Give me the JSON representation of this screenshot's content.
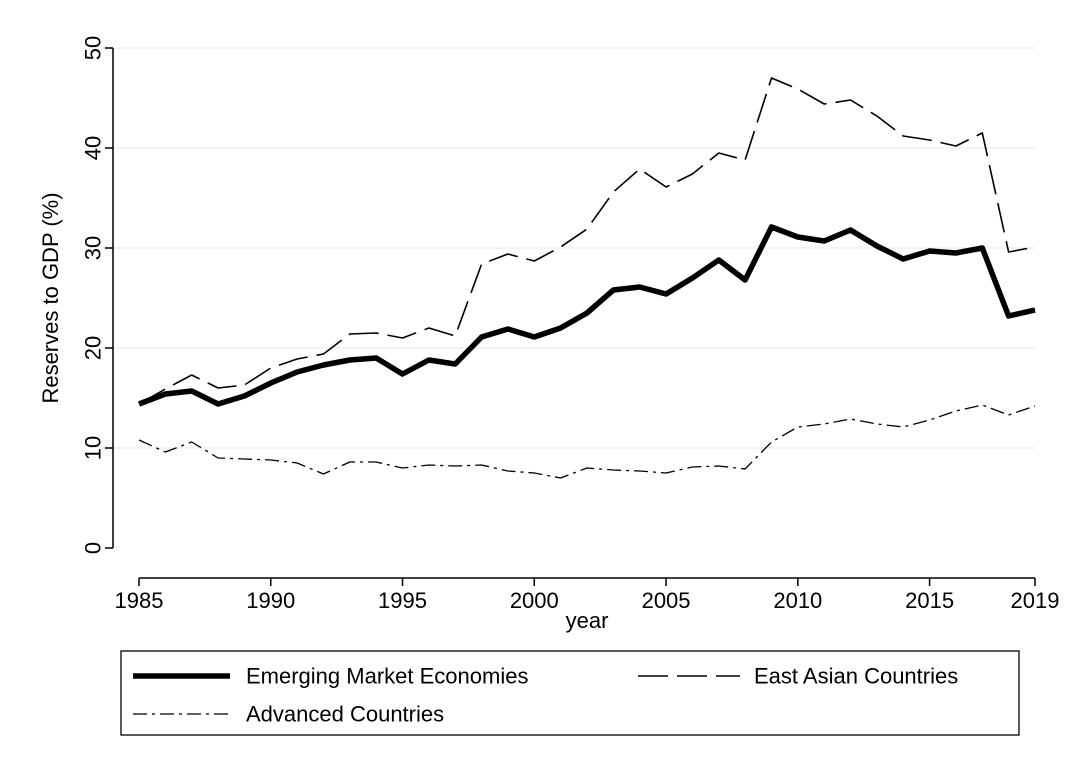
{
  "chart_data": {
    "type": "line",
    "title": "",
    "xlabel": "year",
    "ylabel": "Reserves to GDP (%)",
    "xlim": [
      1985,
      2019
    ],
    "ylim": [
      0,
      50
    ],
    "x_ticks": [
      1985,
      1990,
      1995,
      2000,
      2005,
      2010,
      2015,
      2019
    ],
    "y_ticks": [
      0,
      10,
      20,
      30,
      40,
      50
    ],
    "grid": true,
    "legend_position": "bottom",
    "x": [
      1985,
      1986,
      1987,
      1988,
      1989,
      1990,
      1991,
      1992,
      1993,
      1994,
      1995,
      1996,
      1997,
      1998,
      1999,
      2000,
      2001,
      2002,
      2003,
      2004,
      2005,
      2006,
      2007,
      2008,
      2009,
      2010,
      2011,
      2012,
      2013,
      2014,
      2015,
      2016,
      2017,
      2018,
      2019
    ],
    "series": [
      {
        "name": "Emerging Market Economies",
        "style": "solid-thick",
        "color": "#000000",
        "values": [
          14.4,
          15.4,
          15.7,
          14.4,
          15.2,
          16.5,
          17.6,
          18.3,
          18.8,
          19.0,
          17.4,
          18.8,
          18.4,
          21.1,
          21.9,
          21.1,
          22.0,
          23.5,
          25.8,
          26.1,
          25.4,
          27.0,
          28.8,
          26.8,
          32.1,
          31.1,
          30.7,
          31.8,
          30.2,
          28.9,
          29.7,
          29.5,
          30.0,
          23.2,
          23.8
        ]
      },
      {
        "name": "East Asian Countries",
        "style": "long-dash",
        "color": "#000000",
        "values": [
          14.4,
          15.9,
          17.3,
          16.0,
          16.3,
          18.0,
          18.9,
          19.4,
          21.4,
          21.5,
          21.0,
          22.0,
          21.2,
          28.4,
          29.4,
          28.7,
          30.1,
          31.9,
          35.6,
          37.9,
          36.1,
          37.4,
          39.5,
          38.8,
          47.0,
          45.9,
          44.4,
          44.8,
          43.2,
          41.2,
          40.8,
          40.2,
          41.5,
          29.6,
          30.1
        ]
      },
      {
        "name": "Advanced Countries",
        "style": "dash-dot",
        "color": "#000000",
        "values": [
          10.8,
          9.6,
          10.6,
          9.0,
          8.9,
          8.8,
          8.5,
          7.4,
          8.6,
          8.6,
          8.0,
          8.3,
          8.2,
          8.3,
          7.7,
          7.5,
          7.0,
          8.0,
          7.8,
          7.7,
          7.5,
          8.1,
          8.2,
          7.9,
          10.6,
          12.1,
          12.4,
          12.9,
          12.4,
          12.1,
          12.8,
          13.7,
          14.3,
          13.3,
          14.2
        ]
      }
    ]
  }
}
